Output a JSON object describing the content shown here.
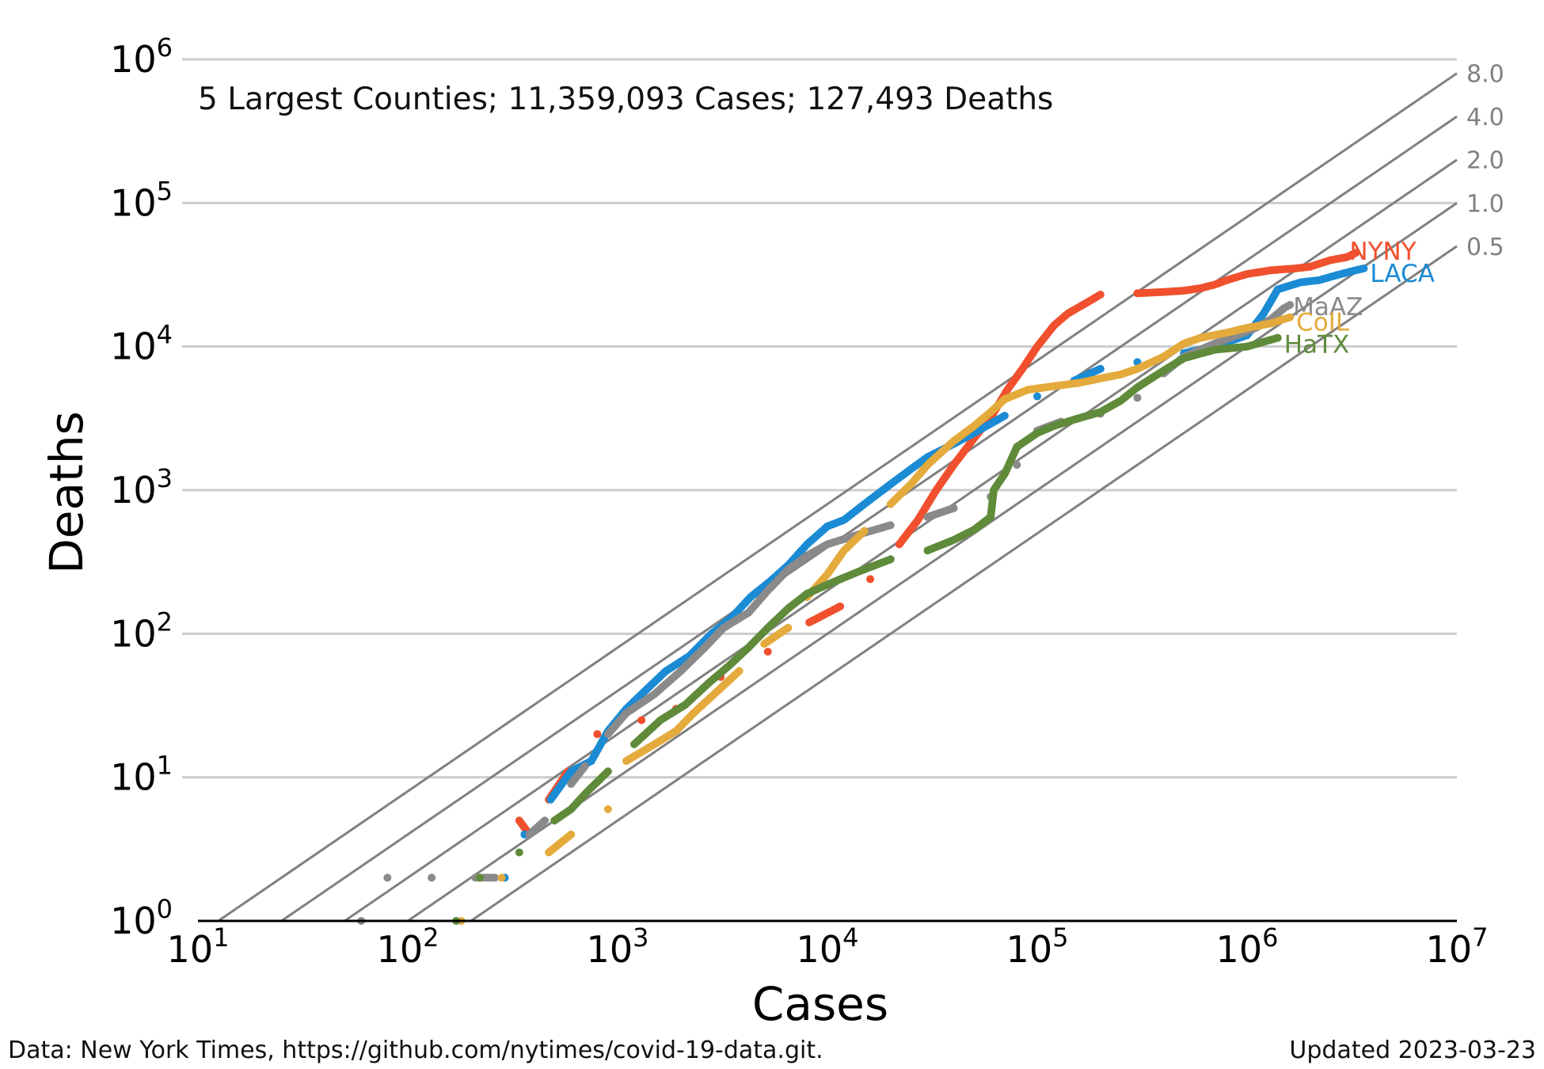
{
  "chart_data": {
    "type": "scatter",
    "title": "5 Largest Counties; 11,359,093 Cases; 127,493 Deaths",
    "xlabel": "Cases",
    "ylabel": "Deaths",
    "x_scale": "log",
    "y_scale": "log",
    "xlim": [
      10,
      10000000
    ],
    "ylim": [
      1,
      1000000
    ],
    "x_ticks": [
      {
        "value": 10,
        "base": "10",
        "exp": "1"
      },
      {
        "value": 100,
        "base": "10",
        "exp": "2"
      },
      {
        "value": 1000,
        "base": "10",
        "exp": "3"
      },
      {
        "value": 10000,
        "base": "10",
        "exp": "4"
      },
      {
        "value": 100000,
        "base": "10",
        "exp": "5"
      },
      {
        "value": 1000000,
        "base": "10",
        "exp": "6"
      },
      {
        "value": 10000000,
        "base": "10",
        "exp": "7"
      }
    ],
    "y_ticks": [
      {
        "value": 1,
        "base": "10",
        "exp": "0"
      },
      {
        "value": 10,
        "base": "10",
        "exp": "1"
      },
      {
        "value": 100,
        "base": "10",
        "exp": "2"
      },
      {
        "value": 1000,
        "base": "10",
        "exp": "3"
      },
      {
        "value": 10000,
        "base": "10",
        "exp": "4"
      },
      {
        "value": 100000,
        "base": "10",
        "exp": "5"
      },
      {
        "value": 1000000,
        "base": "10",
        "exp": "6"
      }
    ],
    "grid": "horizontal",
    "reference_lines": {
      "description": "Deaths as percent of cases",
      "color": "#808080",
      "items": [
        {
          "label": "8.0",
          "pct": 8.0
        },
        {
          "label": "4.0",
          "pct": 4.0
        },
        {
          "label": "2.0",
          "pct": 2.0
        },
        {
          "label": "1.0",
          "pct": 1.0
        },
        {
          "label": "0.5",
          "pct": 0.5
        }
      ]
    },
    "series": [
      {
        "name": "NYNY",
        "color": "#f0502e",
        "points": [
          [
            340,
            5
          ],
          [
            380,
            4
          ],
          [
            470,
            7
          ],
          [
            580,
            11
          ],
          [
            800,
            20
          ],
          [
            1300,
            25
          ],
          [
            1900,
            30
          ],
          [
            3100,
            50
          ],
          [
            5200,
            75
          ],
          [
            8200,
            120
          ],
          [
            11500,
            155
          ],
          [
            16000,
            240
          ],
          [
            22000,
            420
          ],
          [
            27000,
            620
          ],
          [
            33000,
            1000
          ],
          [
            40000,
            1500
          ],
          [
            50000,
            2300
          ],
          [
            60000,
            3200
          ],
          [
            72000,
            5000
          ],
          [
            85000,
            7000
          ],
          [
            100000,
            10000
          ],
          [
            120000,
            14000
          ],
          [
            140000,
            17000
          ],
          [
            170000,
            20000
          ],
          [
            200000,
            23000
          ],
          [
            300000,
            23500
          ],
          [
            400000,
            24000
          ],
          [
            500000,
            24500
          ],
          [
            600000,
            25500
          ],
          [
            700000,
            27000
          ],
          [
            800000,
            29000
          ],
          [
            1000000,
            32000
          ],
          [
            1300000,
            34000
          ],
          [
            1700000,
            35000
          ],
          [
            2000000,
            36000
          ],
          [
            2500000,
            40000
          ],
          [
            3000000,
            42000
          ],
          [
            3300000,
            45000
          ]
        ]
      },
      {
        "name": "LACA",
        "color": "#1b8bd4",
        "points": [
          [
            290,
            2
          ],
          [
            360,
            4
          ],
          [
            480,
            7
          ],
          [
            600,
            11
          ],
          [
            750,
            13
          ],
          [
            900,
            21
          ],
          [
            1100,
            30
          ],
          [
            1350,
            40
          ],
          [
            1700,
            55
          ],
          [
            2200,
            70
          ],
          [
            2800,
            100
          ],
          [
            3500,
            130
          ],
          [
            4300,
            180
          ],
          [
            5300,
            230
          ],
          [
            6500,
            300
          ],
          [
            8000,
            420
          ],
          [
            10000,
            560
          ],
          [
            12000,
            620
          ],
          [
            15000,
            800
          ],
          [
            20000,
            1100
          ],
          [
            25000,
            1400
          ],
          [
            30000,
            1700
          ],
          [
            40000,
            2100
          ],
          [
            50000,
            2500
          ],
          [
            70000,
            3300
          ],
          [
            100000,
            4500
          ],
          [
            150000,
            5800
          ],
          [
            200000,
            7000
          ],
          [
            300000,
            7800
          ],
          [
            500000,
            9000
          ],
          [
            700000,
            10000
          ],
          [
            1000000,
            12000
          ],
          [
            1200000,
            17000
          ],
          [
            1400000,
            25000
          ],
          [
            1800000,
            28000
          ],
          [
            2200000,
            29000
          ],
          [
            2800000,
            32000
          ],
          [
            3300000,
            34000
          ],
          [
            3600000,
            35000
          ]
        ]
      },
      {
        "name": "MaAZ",
        "color": "#8a8a8a",
        "points": [
          [
            60,
            1
          ],
          [
            80,
            2
          ],
          [
            130,
            2
          ],
          [
            210,
            2
          ],
          [
            260,
            2
          ],
          [
            380,
            4
          ],
          [
            450,
            5
          ],
          [
            600,
            9
          ],
          [
            700,
            12
          ],
          [
            900,
            20
          ],
          [
            1100,
            28
          ],
          [
            1500,
            38
          ],
          [
            2000,
            55
          ],
          [
            2600,
            80
          ],
          [
            3200,
            110
          ],
          [
            4200,
            140
          ],
          [
            5200,
            200
          ],
          [
            6500,
            280
          ],
          [
            8000,
            350
          ],
          [
            10000,
            420
          ],
          [
            14000,
            490
          ],
          [
            20000,
            570
          ],
          [
            30000,
            650
          ],
          [
            40000,
            750
          ],
          [
            60000,
            900
          ],
          [
            80000,
            1500
          ],
          [
            100000,
            2600
          ],
          [
            130000,
            3000
          ],
          [
            200000,
            3400
          ],
          [
            300000,
            4400
          ],
          [
            400000,
            6500
          ],
          [
            500000,
            8500
          ],
          [
            700000,
            10500
          ],
          [
            900000,
            12000
          ],
          [
            1100000,
            13500
          ],
          [
            1300000,
            15500
          ],
          [
            1500000,
            18500
          ],
          [
            1600000,
            19500
          ]
        ]
      },
      {
        "name": "CoIL",
        "color": "#e4aa3c",
        "points": [
          [
            180,
            1
          ],
          [
            280,
            2
          ],
          [
            470,
            3
          ],
          [
            600,
            4
          ],
          [
            900,
            6
          ],
          [
            1100,
            13
          ],
          [
            1500,
            17
          ],
          [
            1900,
            21
          ],
          [
            2300,
            28
          ],
          [
            3000,
            40
          ],
          [
            3800,
            55
          ],
          [
            5000,
            85
          ],
          [
            6500,
            110
          ],
          [
            8000,
            180
          ],
          [
            10000,
            260
          ],
          [
            12000,
            380
          ],
          [
            15000,
            520
          ],
          [
            20000,
            800
          ],
          [
            25000,
            1100
          ],
          [
            30000,
            1500
          ],
          [
            40000,
            2200
          ],
          [
            50000,
            2800
          ],
          [
            60000,
            3500
          ],
          [
            70000,
            4300
          ],
          [
            90000,
            5000
          ],
          [
            120000,
            5300
          ],
          [
            160000,
            5600
          ],
          [
            200000,
            6000
          ],
          [
            250000,
            6400
          ],
          [
            300000,
            7000
          ],
          [
            400000,
            8500
          ],
          [
            500000,
            10500
          ],
          [
            600000,
            11500
          ],
          [
            800000,
            12500
          ],
          [
            1000000,
            13500
          ],
          [
            1300000,
            14500
          ],
          [
            1600000,
            16000
          ]
        ]
      },
      {
        "name": "HaTX",
        "color": "#5f8b3a",
        "points": [
          [
            170,
            1
          ],
          [
            220,
            2
          ],
          [
            340,
            3
          ],
          [
            500,
            5
          ],
          [
            600,
            6
          ],
          [
            720,
            8
          ],
          [
            900,
            11
          ],
          [
            1200,
            17
          ],
          [
            1600,
            25
          ],
          [
            2100,
            32
          ],
          [
            2700,
            45
          ],
          [
            3400,
            60
          ],
          [
            4200,
            80
          ],
          [
            5200,
            110
          ],
          [
            6500,
            150
          ],
          [
            8000,
            190
          ],
          [
            10000,
            220
          ],
          [
            14000,
            270
          ],
          [
            20000,
            330
          ],
          [
            30000,
            380
          ],
          [
            40000,
            450
          ],
          [
            50000,
            530
          ],
          [
            60000,
            650
          ],
          [
            62000,
            1000
          ],
          [
            70000,
            1300
          ],
          [
            80000,
            2000
          ],
          [
            100000,
            2500
          ],
          [
            120000,
            2800
          ],
          [
            150000,
            3100
          ],
          [
            200000,
            3500
          ],
          [
            250000,
            4200
          ],
          [
            300000,
            5200
          ],
          [
            400000,
            6800
          ],
          [
            500000,
            8300
          ],
          [
            700000,
            9500
          ],
          [
            1000000,
            10000
          ],
          [
            1400000,
            11500
          ]
        ]
      }
    ]
  },
  "footer": {
    "source": "Data: New York Times, https://github.com/nytimes/covid-19-data.git.",
    "updated": "Updated 2023-03-23"
  }
}
